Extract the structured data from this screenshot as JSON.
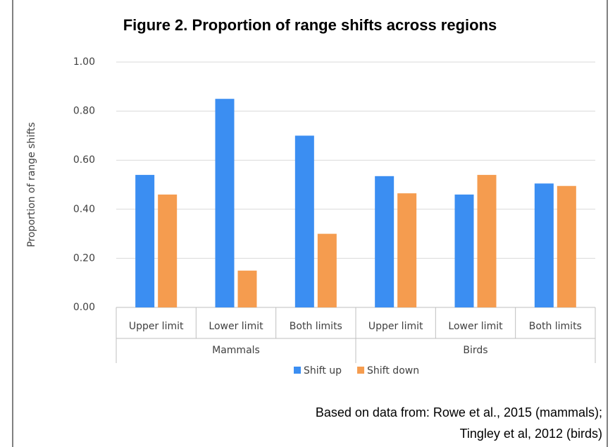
{
  "chart_data": {
    "type": "bar",
    "title": "Figure 2. Proportion of range shifts across regions",
    "y_label": "Proportion of range shifts",
    "groups": [
      {
        "name": "Mammals",
        "categories": [
          "Upper limit",
          "Lower limit",
          "Both limits"
        ]
      },
      {
        "name": "Birds",
        "categories": [
          "Upper limit",
          "Lower limit",
          "Both limits"
        ]
      }
    ],
    "series": [
      {
        "name": "Shift up",
        "color": "#3b8ef2",
        "values": [
          0.54,
          0.85,
          0.7,
          0.535,
          0.46,
          0.505
        ]
      },
      {
        "name": "Shift down",
        "color": "#f59c4f",
        "values": [
          0.46,
          0.15,
          0.3,
          0.465,
          0.54,
          0.495
        ]
      }
    ],
    "ylim": [
      0,
      1
    ],
    "yticks": [
      {
        "value": 0,
        "label": "0.00"
      },
      {
        "value": 0.2,
        "label": "0.20"
      },
      {
        "value": 0.4,
        "label": "0.40"
      },
      {
        "value": 0.6,
        "label": "0.60"
      },
      {
        "value": 0.8,
        "label": "0.80"
      },
      {
        "value": 1,
        "label": "1.00"
      }
    ],
    "grid": true,
    "legend": "bottom",
    "source": [
      "Based on data from: Rowe et al., 2015 (mammals);",
      "Tingley et al, 2012 (birds)"
    ]
  }
}
